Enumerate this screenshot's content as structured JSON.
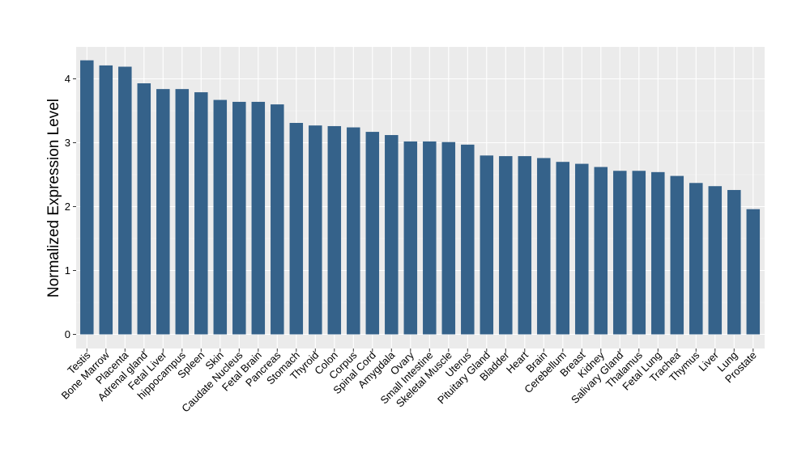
{
  "chart_data": {
    "type": "bar",
    "title": "",
    "xlabel": "",
    "ylabel": "Normalized Expression Level",
    "ylim": [
      -0.25,
      4.5
    ],
    "yticks": [
      0,
      1,
      2,
      3,
      4
    ],
    "grid": true,
    "legend": "none",
    "colors": {
      "bar": "#35628a",
      "panel_bg": "#ebebeb",
      "grid_major": "#ffffff",
      "grid_minor": "#f5f5f5",
      "tick": "#333333"
    },
    "categories": [
      "Testis",
      "Bone Marrow",
      "Placenta",
      "Adrenal gland",
      "Fetal Liver",
      "hippocampus",
      "Spleen",
      "Skin",
      "Caudate Nucleus",
      "Fetal Brain",
      "Pancreas",
      "Stomach",
      "Thyroid",
      "Colon",
      "Corpus",
      "Spinal Cord",
      "Amygdala",
      "Ovary",
      "Small Intestine",
      "Skeletal Muscle",
      "Uterus",
      "Pituitary Gland",
      "Bladder",
      "Heart",
      "Brain",
      "Cerebellum",
      "Breast",
      "Kidney",
      "Salivary Gland",
      "Thalamus",
      "Fetal Lung",
      "Trachea",
      "Thymus",
      "Liver",
      "Lung",
      "Prostate"
    ],
    "values": [
      4.29,
      4.21,
      4.19,
      3.93,
      3.84,
      3.84,
      3.79,
      3.67,
      3.64,
      3.64,
      3.6,
      3.31,
      3.27,
      3.26,
      3.24,
      3.17,
      3.12,
      3.02,
      3.02,
      3.01,
      2.97,
      2.8,
      2.79,
      2.79,
      2.76,
      2.7,
      2.67,
      2.62,
      2.56,
      2.56,
      2.54,
      2.48,
      2.37,
      2.32,
      2.26,
      1.96
    ]
  }
}
